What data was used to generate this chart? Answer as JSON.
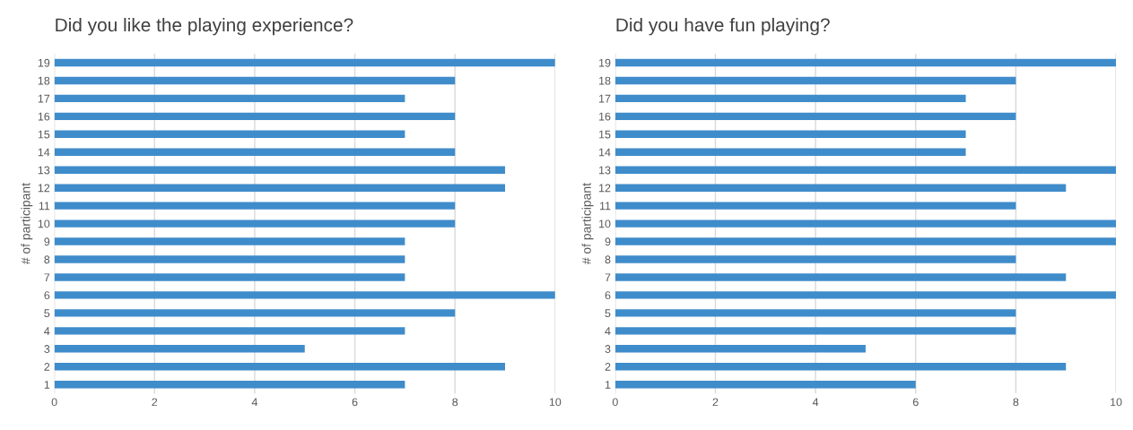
{
  "chart_data": [
    {
      "type": "bar",
      "orientation": "horizontal",
      "title": "Did you like the playing experience?",
      "ylabel": "# of participant",
      "categories": [
        "19",
        "18",
        "17",
        "16",
        "15",
        "14",
        "13",
        "12",
        "11",
        "10",
        "9",
        "8",
        "7",
        "6",
        "5",
        "4",
        "3",
        "2",
        "1"
      ],
      "values": [
        10,
        8,
        7,
        8,
        7,
        8,
        9,
        9,
        8,
        8,
        7,
        7,
        7,
        10,
        8,
        7,
        5,
        9,
        7
      ],
      "color": "#3f8ccb",
      "xlim": [
        0,
        10
      ],
      "xticks": [
        0,
        2,
        4,
        6,
        8,
        10
      ],
      "grid": "x"
    },
    {
      "type": "bar",
      "orientation": "horizontal",
      "title": "Did you have fun playing?",
      "ylabel": "# of participant",
      "categories": [
        "19",
        "18",
        "17",
        "16",
        "15",
        "14",
        "13",
        "12",
        "11",
        "10",
        "9",
        "8",
        "7",
        "6",
        "5",
        "4",
        "3",
        "2",
        "1"
      ],
      "values": [
        10,
        8,
        7,
        8,
        7,
        7,
        10,
        9,
        8,
        10,
        10,
        8,
        9,
        10,
        8,
        8,
        5,
        9,
        6
      ],
      "color": "#3f8ccb",
      "xlim": [
        0,
        10
      ],
      "xticks": [
        0,
        2,
        4,
        6,
        8,
        10
      ],
      "grid": "x"
    }
  ]
}
